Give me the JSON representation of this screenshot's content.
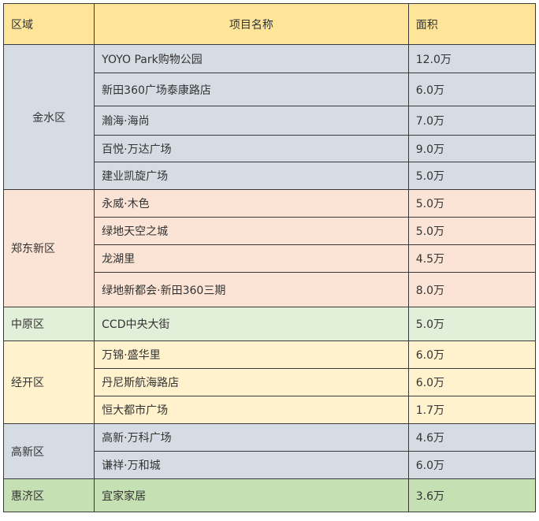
{
  "header": {
    "district": "区域",
    "project": "项目名称",
    "area": "面积"
  },
  "groups": [
    {
      "district": "金水区",
      "color": "#d6dce4",
      "rows": [
        {
          "project": "YOYO Park购物公园",
          "area": "12.0万"
        },
        {
          "project": "新田360广场泰康路店",
          "area": "6.0万"
        },
        {
          "project": "瀚海·海尚",
          "area": "7.0万"
        },
        {
          "project": "百悦·万达广场",
          "area": "9.0万"
        },
        {
          "project": "建业凯旋广场",
          "area": "5.0万"
        }
      ]
    },
    {
      "district": "郑东新区",
      "color": "#fbe4d5",
      "rows": [
        {
          "project": "永威·木色",
          "area": "5.0万"
        },
        {
          "project": "绿地天空之城",
          "area": "5.0万"
        },
        {
          "project": "龙湖里",
          "area": "4.5万"
        },
        {
          "project": "绿地新都会·新田360三期",
          "area": "8.0万"
        }
      ]
    },
    {
      "district": "中原区",
      "color": "#e2efd9",
      "rows": [
        {
          "project": "CCD中央大街",
          "area": "5.0万"
        }
      ]
    },
    {
      "district": "经开区",
      "color": "#fff2cc",
      "rows": [
        {
          "project": "万锦·盛华里",
          "area": "6.0万"
        },
        {
          "project": "丹尼斯航海路店",
          "area": "6.0万"
        },
        {
          "project": "恒大都市广场",
          "area": "1.7万"
        }
      ]
    },
    {
      "district": "高新区",
      "color": "#d6dce4",
      "rows": [
        {
          "project": "高新·万科广场",
          "area": "4.6万"
        },
        {
          "project": "谦祥·万和城",
          "area": "6.0万"
        }
      ]
    },
    {
      "district": "惠济区",
      "color": "#c5e0b3",
      "rows": [
        {
          "project": "宜家家居",
          "area": "3.6万"
        }
      ]
    }
  ]
}
